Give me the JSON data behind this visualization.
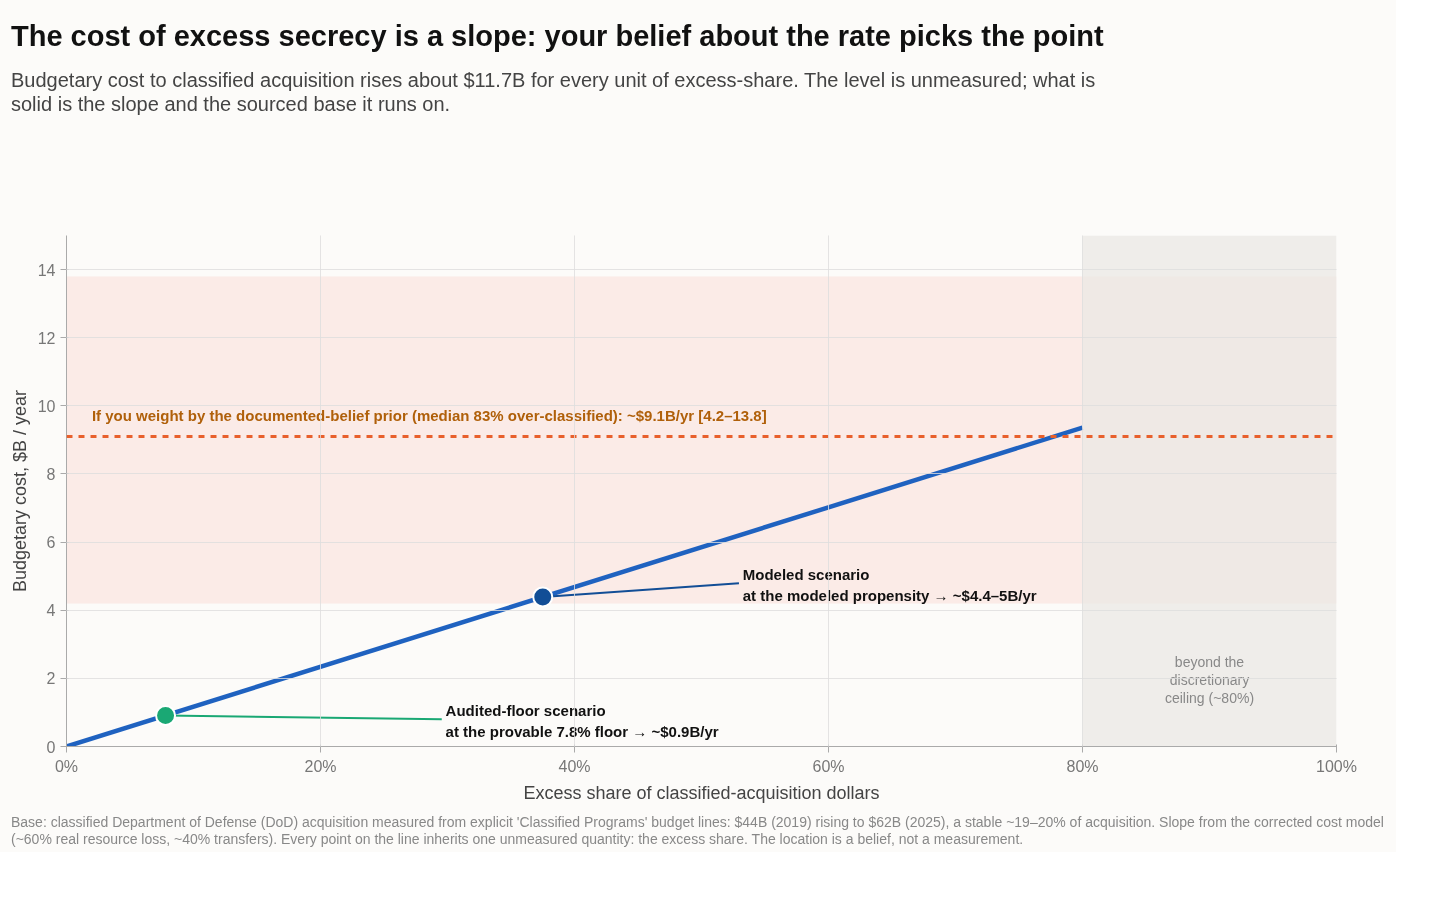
{
  "chart_data": {
    "type": "line",
    "title": "The cost of excess secrecy is a slope: your belief about the rate picks the point",
    "subtitle": "Budgetary cost to classified acquisition rises about $11.7B for every unit of excess-share. The level is unmeasured; what is solid is the slope and the sourced base it runs on.",
    "xlabel": "Excess share of classified-acquisition dollars",
    "ylabel": "Budgetary cost, $B / year",
    "series": [
      {
        "color": "#1f62c0",
        "x": [
          0,
          80
        ],
        "values": [
          0,
          9.36
        ]
      },
      {
        "type": "scatter",
        "marker": "circle",
        "colors": [
          "#1aa874",
          "#124e96"
        ],
        "x": [
          7.8,
          37.5
        ],
        "values": [
          0.91,
          4.39
        ]
      }
    ],
    "xlim": [
      0,
      100
    ],
    "xticks": [
      {
        "value": 0,
        "label": "0%"
      },
      {
        "value": 20,
        "label": "20%"
      },
      {
        "value": 40,
        "label": "40%"
      },
      {
        "value": 60,
        "label": "60%"
      },
      {
        "value": 80,
        "label": "80%"
      },
      {
        "value": 100,
        "label": "100%"
      }
    ],
    "ylim": [
      0,
      15
    ],
    "yticks": [
      0,
      2,
      4,
      6,
      8,
      10,
      12,
      14
    ],
    "grid": true,
    "line_style": "solid",
    "ref_lines": [
      {
        "axis": "y",
        "value": 9.1,
        "label": "If you weight by the documented-belief prior (median 83% over-classified):  ~$9.1B/yr  [4.2–13.8]",
        "color": "#e8602c",
        "line_style": "dashed"
      }
    ],
    "bands": [
      {
        "axis": "y",
        "from": 4.2,
        "to": 13.8,
        "label": null,
        "color": "#fbe6e0"
      },
      {
        "axis": "x",
        "from": 80,
        "to": 100,
        "label": "beyond the discretionary ceiling (~80%)",
        "color": "#ebe8e4"
      }
    ],
    "annotations": [
      {
        "text": "Audited-floor scenario\nat the provable 7.8% floor  →  ~$0.9B/yr",
        "x": 7.8,
        "y": 0.91
      },
      {
        "text": "Modeled scenario\nat the modeled propensity  →  ~$4.4–5B/yr",
        "x": 37.5,
        "y": 4.39
      },
      "Base: classified Department of Defense (DoD) acquisition measured from explicit 'Classified Programs' budget lines: $44B (2019) rising to $62B (2025), a stable ~19–20% of acquisition. Slope from the corrected cost model (~60% real resource loss, ~40% transfers). Every point on the line inherits one unmeasured quantity: the excess share. The location is a belief, not a measurement."
    ]
  }
}
